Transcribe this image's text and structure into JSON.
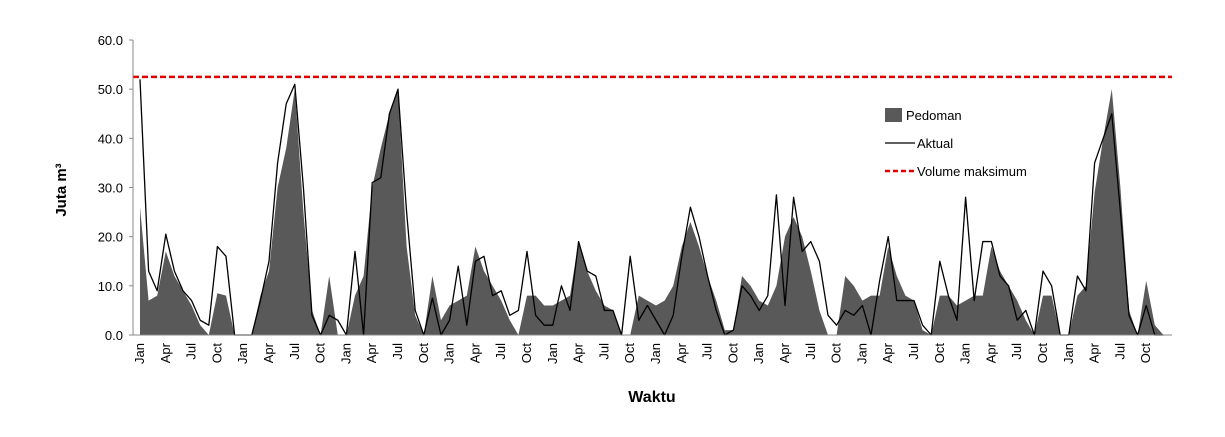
{
  "chart_data": {
    "type": "line-area",
    "y_label": "Juta m³",
    "x_label": "Waktu",
    "categories": [
      "Jan",
      null,
      null,
      "Apr",
      null,
      null,
      "Jul",
      null,
      null,
      "Oct",
      null,
      null,
      "Jan",
      null,
      null,
      "Apr",
      null,
      null,
      "Jul",
      null,
      null,
      "Oct",
      null,
      null,
      "Jan",
      null,
      null,
      "Apr",
      null,
      null,
      "Jul",
      null,
      null,
      "Oct",
      null,
      null,
      "Jan",
      null,
      null,
      "Apr",
      null,
      null,
      "Jul",
      null,
      null,
      "Oct",
      null,
      null,
      "Jan",
      null,
      null,
      "Apr",
      null,
      null,
      "Jul",
      null,
      null,
      "Oct",
      null,
      null,
      "Jan",
      null,
      null,
      "Apr",
      null,
      null,
      "Jul",
      null,
      null,
      "Oct",
      null,
      null,
      "Jan",
      null,
      null,
      "Apr",
      null,
      null,
      "Jul",
      null,
      null,
      "Oct",
      null,
      null,
      "Jan",
      null,
      null,
      "Apr",
      null,
      null,
      "Jul",
      null,
      null,
      "Oct",
      null,
      null,
      "Jan",
      null,
      null,
      "Apr",
      null,
      null,
      "Jul",
      null,
      null,
      "Oct",
      null,
      null,
      "Jan",
      null,
      null,
      "Apr",
      null,
      null,
      "Jul",
      null,
      null,
      "Oct",
      null,
      null
    ],
    "series": [
      {
        "name": "Pedoman",
        "style": "area",
        "color": "#595959",
        "values": [
          26,
          7,
          8,
          17,
          12,
          9,
          6,
          2,
          0,
          8.5,
          8,
          0,
          0,
          0,
          8,
          13,
          30,
          38,
          50,
          25,
          5,
          0,
          12,
          0,
          0,
          8,
          12,
          30,
          38,
          45,
          50,
          18,
          4,
          0,
          12,
          3,
          6,
          7,
          8,
          18,
          13,
          10,
          7,
          3,
          0,
          8,
          8,
          6,
          6,
          7,
          8,
          19,
          13,
          9,
          6,
          5,
          0,
          0,
          8,
          7,
          6,
          7,
          10,
          18,
          23,
          18,
          12,
          7,
          1,
          1,
          12,
          10,
          7,
          6,
          10,
          20,
          24,
          20,
          13,
          5,
          0,
          0,
          12,
          10,
          7,
          8,
          8,
          18,
          12,
          8,
          7,
          1,
          0,
          8,
          8,
          6,
          7,
          8,
          8,
          18,
          13,
          10,
          7,
          3,
          0,
          8,
          8,
          0,
          0,
          8,
          10,
          29,
          40,
          50,
          30,
          5,
          0,
          11,
          2,
          0
        ]
      },
      {
        "name": "Aktual",
        "style": "line",
        "color": "#000000",
        "values": [
          52,
          13,
          9,
          20.5,
          13,
          9,
          7,
          3,
          2,
          18,
          16,
          0,
          0,
          0,
          7,
          15,
          35,
          47,
          51,
          30,
          4,
          0,
          4,
          3,
          0,
          17,
          0,
          31,
          32,
          45,
          50,
          25,
          5,
          0,
          7.5,
          0,
          3,
          14,
          2,
          15,
          16,
          8,
          9,
          4,
          5,
          17,
          4,
          2,
          2,
          10,
          5,
          19,
          13,
          12,
          5,
          5,
          0,
          16,
          3,
          6,
          3,
          0,
          4,
          16,
          26,
          20,
          12,
          5,
          0,
          1,
          10,
          8,
          5,
          8,
          28.5,
          6,
          28,
          17,
          19,
          15,
          4,
          2,
          5,
          4,
          6,
          0,
          11,
          20,
          7,
          7,
          7,
          2,
          0,
          15,
          8,
          3,
          28,
          7,
          19,
          19,
          12,
          10,
          3,
          5,
          0,
          13,
          10,
          0,
          0,
          12,
          9,
          35,
          40,
          45,
          25,
          4,
          0,
          6,
          0,
          0
        ]
      }
    ],
    "reference_lines": [
      {
        "name": "Volume maksimum",
        "value": 52.5,
        "color": "#e00000"
      }
    ],
    "ylim": [
      0,
      60
    ],
    "yticks": [
      {
        "value": 0,
        "label": "0.0"
      },
      {
        "value": 10,
        "label": "10.0"
      },
      {
        "value": 20,
        "label": "20.0"
      },
      {
        "value": 30,
        "label": "30.0"
      },
      {
        "value": 40,
        "label": "40.0"
      },
      {
        "value": 50,
        "label": "50.0"
      },
      {
        "value": 60,
        "label": "60.0"
      }
    ]
  }
}
